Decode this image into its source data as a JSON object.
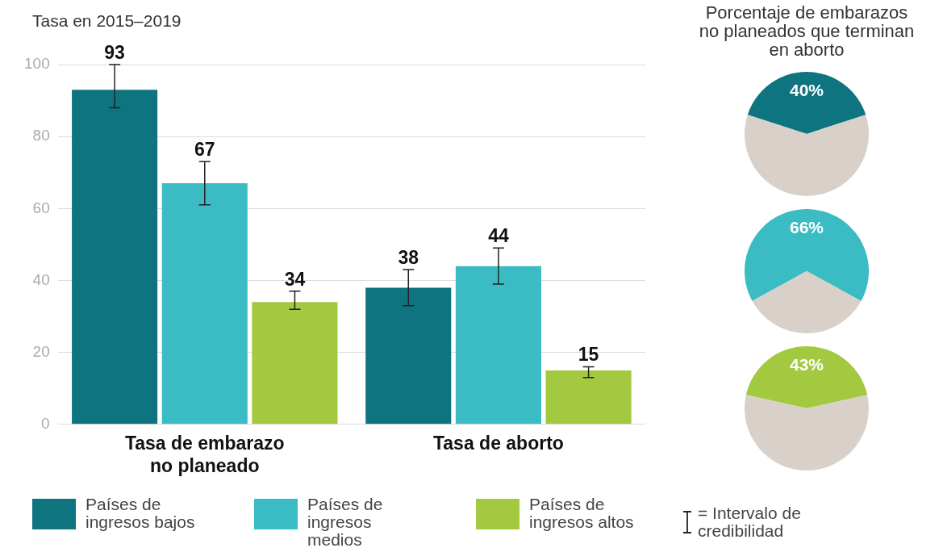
{
  "chart_data": [
    {
      "type": "bar",
      "ylabel": "Tasa en 2015–2019",
      "categories": [
        "Tasa de embarazo no planeado",
        "Tasa de aborto"
      ],
      "series": [
        {
          "name": "Países de ingresos bajos",
          "color": "#0e7580",
          "values": [
            93,
            38
          ],
          "errors": [
            [
              88,
              100
            ],
            [
              33,
              43
            ]
          ]
        },
        {
          "name": "Países de ingresos medios",
          "color": "#3bbcc4",
          "values": [
            67,
            44
          ],
          "errors": [
            [
              61,
              73
            ],
            [
              39,
              49
            ]
          ]
        },
        {
          "name": "Países de ingresos altos",
          "color": "#a3c940",
          "values": [
            34,
            15
          ],
          "errors": [
            [
              32,
              37
            ],
            [
              13,
              16
            ]
          ]
        }
      ],
      "ylim": [
        0,
        100
      ],
      "yticks": [
        0,
        20,
        40,
        60,
        80,
        100
      ],
      "grid": "y",
      "data_labels": true,
      "legend": "bottom",
      "annotations": [
        "= Intervalo de credibilidad"
      ]
    },
    {
      "type": "pie",
      "title": "Porcentaje de embarazos no planeados que terminan en aborto",
      "categories": [
        null,
        null
      ],
      "values": [
        40,
        60
      ],
      "colors": [
        "#0e7580",
        "#d9d1c9"
      ],
      "value_labels": [
        "40%",
        null
      ]
    },
    {
      "type": "pie",
      "categories": [
        null,
        null
      ],
      "values": [
        66,
        34
      ],
      "colors": [
        "#3bbcc4",
        "#d9d1c9"
      ],
      "value_labels": [
        "66%",
        null
      ]
    },
    {
      "type": "pie",
      "categories": [
        null,
        null
      ],
      "values": [
        43,
        57
      ],
      "colors": [
        "#a3c940",
        "#d9d1c9"
      ],
      "value_labels": [
        "43%",
        null
      ]
    }
  ]
}
